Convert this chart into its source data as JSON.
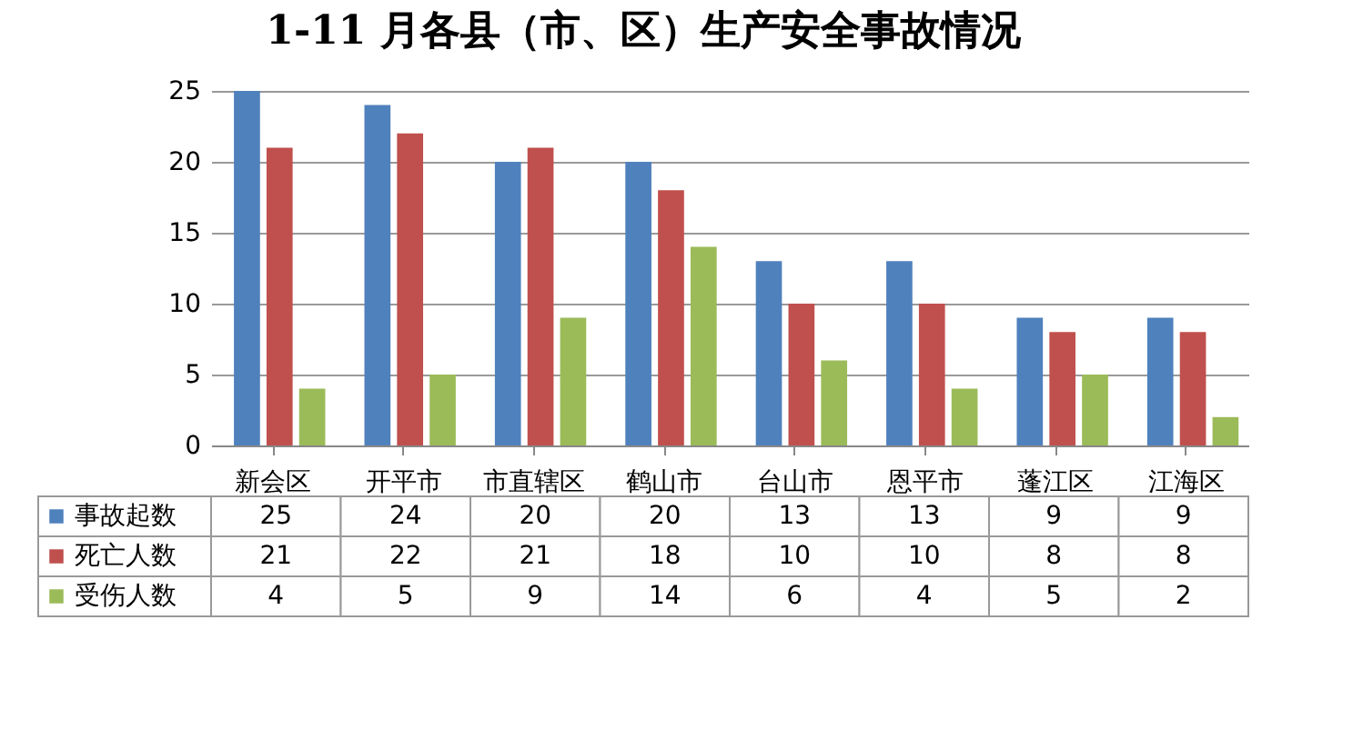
{
  "chart_data": {
    "type": "bar",
    "title": "1-11 月各县（市、区）生产安全事故情况",
    "categories": [
      "新会区",
      "开平市",
      "市直辖区",
      "鹤山市",
      "台山市",
      "恩平市",
      "蓬江区",
      "江海区"
    ],
    "series": [
      {
        "name": "事故起数",
        "color": "#4f81bd",
        "values": [
          25,
          24,
          20,
          20,
          13,
          13,
          9,
          9
        ]
      },
      {
        "name": "死亡人数",
        "color": "#c0504d",
        "values": [
          21,
          22,
          21,
          18,
          10,
          10,
          8,
          8
        ]
      },
      {
        "name": "受伤人数",
        "color": "#9bbb59",
        "values": [
          4,
          5,
          9,
          14,
          6,
          4,
          5,
          2
        ]
      }
    ],
    "ylim": [
      0,
      25
    ],
    "yticks": [
      0,
      5,
      10,
      15,
      20,
      25
    ],
    "grid": "y",
    "legend": "bottom",
    "data_labels": true
  }
}
